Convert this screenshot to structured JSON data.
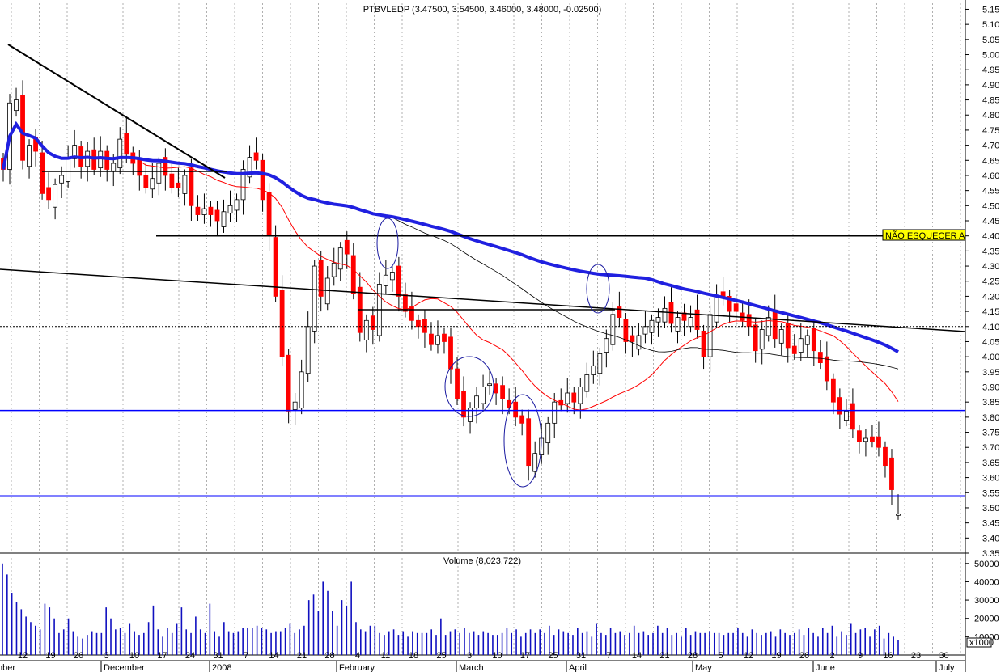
{
  "chart_data": [
    {
      "type": "candlestick",
      "title": "PTBVLEDP (3.47500, 3.54500, 3.46000, 3.48000, -0.02500)",
      "ylim": [
        3.35,
        5.17
      ],
      "yticks": [
        "5.15",
        "5.10",
        "5.05",
        "5.00",
        "4.95",
        "4.90",
        "4.85",
        "4.80",
        "4.75",
        "4.70",
        "4.65",
        "4.60",
        "4.55",
        "4.50",
        "4.45",
        "4.40",
        "4.35",
        "4.30",
        "4.25",
        "4.20",
        "4.15",
        "4.10",
        "4.05",
        "4.00",
        "3.95",
        "3.90",
        "3.85",
        "3.80",
        "3.75",
        "3.70",
        "3.65",
        "3.60",
        "3.55",
        "3.50",
        "3.45",
        "3.40",
        "3.35"
      ],
      "last": {
        "open": 3.475,
        "high": 3.545,
        "low": 3.46,
        "close": 3.48,
        "change": -0.025
      },
      "closes": [
        4.62,
        4.84,
        4.85,
        4.65,
        4.7,
        4.68,
        4.54,
        4.52,
        4.57,
        4.6,
        4.66,
        4.7,
        4.63,
        4.68,
        4.62,
        4.68,
        4.62,
        4.64,
        4.72,
        4.67,
        4.64,
        4.6,
        4.56,
        4.59,
        4.64,
        4.6,
        4.56,
        4.56,
        4.6,
        4.5,
        4.47,
        4.49,
        4.47,
        4.45,
        4.48,
        4.5,
        4.52,
        4.62,
        4.66,
        4.65,
        4.52,
        4.4,
        4.2,
        4.0,
        3.82,
        3.85,
        3.95,
        4.1,
        4.3,
        4.2,
        4.26,
        4.31,
        4.36,
        4.34,
        4.21,
        4.08,
        4.12,
        4.09,
        4.24,
        4.27,
        4.28,
        4.2,
        4.15,
        4.12,
        4.1,
        4.08,
        4.04,
        4.07,
        4.05,
        3.96,
        3.86,
        3.8,
        3.83,
        3.87,
        3.9,
        3.91,
        3.88,
        3.86,
        3.83,
        3.8,
        3.78,
        3.64,
        3.68,
        3.73,
        3.78,
        3.85,
        3.84,
        3.88,
        3.85,
        3.9,
        3.94,
        3.97,
        4.01,
        4.06,
        4.14,
        4.13,
        4.05,
        4.05,
        4.07,
        4.1,
        4.12,
        4.13,
        4.16,
        4.11,
        4.13,
        4.12,
        4.13,
        4.09,
        4.0,
        4.14,
        4.2,
        4.2,
        4.15,
        4.15,
        4.12,
        4.1,
        4.02,
        4.09,
        4.13,
        4.06,
        4.09,
        4.03,
        4.01,
        4.06,
        4.07,
        4.02,
        3.98,
        3.92,
        3.85,
        3.81,
        3.82,
        3.76,
        3.72,
        3.73,
        3.72,
        3.7,
        3.64,
        3.56,
        3.48
      ],
      "ma_short_label": "red moving average",
      "ma_long_label": "blue moving average",
      "horizontal_levels": [
        4.4,
        3.822,
        3.54
      ],
      "dotted_level": 4.1,
      "note": "NÃO ESQUECER A",
      "x_day_labels": [
        "12",
        "19",
        "26",
        "3",
        "10",
        "17",
        "24",
        "31",
        "7",
        "14",
        "21",
        "28",
        "4",
        "11",
        "18",
        "25",
        "3",
        "10",
        "17",
        "25",
        "31",
        "7",
        "14",
        "21",
        "28",
        "5",
        "12",
        "19",
        "26",
        "2",
        "9",
        "16",
        "23",
        "30",
        "7"
      ],
      "x_month_labels": [
        "mber",
        "December",
        "2008",
        "February",
        "March",
        "April",
        "May",
        "June",
        "July"
      ]
    },
    {
      "type": "bar",
      "title": "Volume (8,023,722)",
      "ylim": [
        0,
        53000
      ],
      "yticks": [
        "50000",
        "40000",
        "30000",
        "20000",
        "10000"
      ],
      "unit": "x1000",
      "values": [
        50000,
        44000,
        34000,
        29000,
        25000,
        21000,
        18000,
        16000,
        14000,
        28000,
        26000,
        20000,
        12000,
        14000,
        20000,
        13000,
        10000,
        9000,
        11000,
        13000,
        12000,
        12000,
        26000,
        20000,
        14000,
        15000,
        12000,
        17000,
        13000,
        11000,
        12000,
        18000,
        27000,
        14000,
        10000,
        15000,
        12000,
        17000,
        26000,
        14000,
        12000,
        21000,
        14000,
        12000,
        28000,
        13000,
        10000,
        18000,
        13000,
        12000,
        13000,
        15000,
        15000,
        15000,
        16000,
        15000,
        14000,
        12000,
        13000,
        13000,
        15000,
        17000,
        12000,
        14000,
        16000,
        30000,
        33000,
        24000,
        40000,
        35000,
        24000,
        16000,
        30000,
        27000,
        40000,
        18000,
        14000,
        13000,
        16000,
        16000,
        12000,
        11000,
        13000,
        14000,
        11000,
        13000,
        10000,
        13000,
        12000,
        12000,
        12000,
        14000,
        11000,
        20000,
        11000,
        13000,
        14000,
        12000,
        15000,
        12000,
        13000,
        11000,
        13000,
        12000,
        11000,
        11000,
        12000,
        15000,
        12000,
        14000,
        10000,
        12000,
        14000,
        12000,
        14000,
        12000,
        16000,
        11000,
        14000,
        13000,
        12000,
        11000,
        15000,
        12000,
        13000,
        10000,
        17000,
        12000,
        11000,
        15000,
        12000,
        13000,
        11000,
        12000,
        16000,
        12000,
        13000,
        11000,
        12000,
        16000,
        12000,
        15000,
        11000,
        12000,
        10000,
        15000,
        11000,
        13000,
        12000,
        12000,
        13000,
        12000,
        12000,
        11000,
        12000,
        12000,
        15000,
        12000,
        10000,
        14000,
        12000,
        11000,
        12000,
        13000,
        10000,
        14000,
        12000,
        11000,
        12000,
        14000,
        11000,
        15000,
        12000,
        10000,
        15000,
        12000,
        16000,
        10000,
        13000,
        11000,
        17000,
        12000,
        14000,
        15000,
        10000,
        14000,
        16000,
        9000,
        12000,
        10000,
        8000
      ]
    }
  ]
}
